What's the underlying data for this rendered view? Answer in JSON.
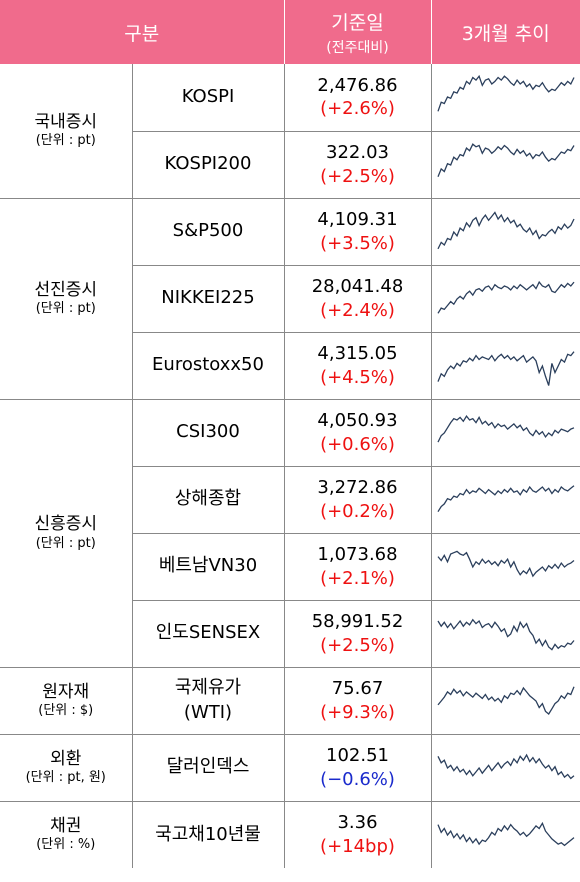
{
  "header": {
    "category": "구분",
    "base_date": "기준일",
    "base_date_sub": "(전주대비)",
    "trend": "3개월 추이"
  },
  "groups": [
    {
      "label": "국내증시",
      "unit": "(단위 : pt)",
      "rows": 2
    },
    {
      "label": "선진증시",
      "unit": "(단위 : pt)",
      "rows": 3
    },
    {
      "label": "신흥증시",
      "unit": "(단위 : pt)",
      "rows": 4
    },
    {
      "label": "원자재",
      "unit": "(단위 : $)",
      "rows": 1
    },
    {
      "label": "외환",
      "unit": "(단위 : pt, 원)",
      "rows": 1
    },
    {
      "label": "채권",
      "unit": "(단위 : %)",
      "rows": 1
    }
  ],
  "rows": [
    {
      "name": "KOSPI",
      "value": "2,476.86",
      "change": "(+2.6%)",
      "direction": "up"
    },
    {
      "name": "KOSPI200",
      "value": "322.03",
      "change": "(+2.5%)",
      "direction": "up"
    },
    {
      "name": "S&P500",
      "value": "4,109.31",
      "change": "(+3.5%)",
      "direction": "up"
    },
    {
      "name": "NIKKEI225",
      "value": "28,041.48",
      "change": "(+2.4%)",
      "direction": "up"
    },
    {
      "name": "Eurostoxx50",
      "value": "4,315.05",
      "change": "(+4.5%)",
      "direction": "up"
    },
    {
      "name": "CSI300",
      "value": "4,050.93",
      "change": "(+0.6%)",
      "direction": "up"
    },
    {
      "name": "상해종합",
      "value": "3,272.86",
      "change": "(+0.2%)",
      "direction": "up"
    },
    {
      "name": "베트남VN30",
      "value": "1,073.68",
      "change": "(+2.1%)",
      "direction": "up"
    },
    {
      "name": "인도SENSEX",
      "value": "58,991.52",
      "change": "(+2.5%)",
      "direction": "up"
    },
    {
      "name": "국제유가\n(WTI)",
      "value": "75.67",
      "change": "(+9.3%)",
      "direction": "up"
    },
    {
      "name": "달러인덱스",
      "value": "102.51",
      "change": "(−0.6%)",
      "direction": "down"
    },
    {
      "name": "국고채10년물",
      "value": "3.36",
      "change": "(+14bp)",
      "direction": "up"
    }
  ],
  "colors": {
    "header_bg": "#f06b8c",
    "up": "#ee1111",
    "down": "#1a2acc",
    "spark_line": "#2b3f5c"
  },
  "sparklines": [
    [
      18,
      32,
      30,
      40,
      38,
      48,
      46,
      55,
      52,
      64,
      60,
      70,
      66,
      72,
      58,
      66,
      68,
      60,
      64,
      70,
      66,
      72,
      68,
      62,
      58,
      66,
      60,
      64,
      56,
      60,
      52,
      58,
      56,
      62,
      54,
      48,
      52,
      50,
      56,
      62,
      58,
      64,
      60,
      70
    ],
    [
      22,
      34,
      30,
      42,
      40,
      52,
      48,
      56,
      54,
      66,
      62,
      72,
      68,
      70,
      58,
      66,
      64,
      58,
      62,
      68,
      64,
      70,
      66,
      60,
      56,
      64,
      58,
      62,
      54,
      58,
      50,
      56,
      54,
      60,
      52,
      46,
      50,
      48,
      54,
      60,
      58,
      64,
      62,
      70
    ],
    [
      14,
      24,
      20,
      30,
      28,
      40,
      34,
      46,
      42,
      54,
      48,
      58,
      62,
      50,
      60,
      66,
      58,
      64,
      70,
      60,
      66,
      56,
      62,
      54,
      58,
      48,
      52,
      44,
      40,
      46,
      36,
      42,
      30,
      36,
      34,
      40,
      44,
      38,
      48,
      44,
      52,
      46,
      50,
      60
    ],
    [
      18,
      26,
      24,
      30,
      36,
      32,
      40,
      44,
      40,
      48,
      52,
      46,
      54,
      56,
      52,
      58,
      60,
      54,
      62,
      58,
      56,
      60,
      58,
      54,
      60,
      56,
      62,
      58,
      54,
      58,
      62,
      56,
      66,
      60,
      58,
      62,
      52,
      50,
      56,
      62,
      58,
      64,
      60,
      66
    ],
    [
      16,
      28,
      24,
      34,
      40,
      36,
      44,
      40,
      48,
      46,
      52,
      48,
      56,
      50,
      54,
      52,
      50,
      56,
      48,
      54,
      58,
      52,
      56,
      50,
      54,
      48,
      52,
      56,
      46,
      50,
      54,
      48,
      30,
      40,
      24,
      10,
      44,
      30,
      40,
      50,
      46,
      58,
      56,
      62
    ],
    [
      26,
      36,
      40,
      48,
      56,
      62,
      60,
      64,
      58,
      66,
      60,
      62,
      56,
      64,
      54,
      58,
      52,
      56,
      48,
      54,
      50,
      52,
      46,
      50,
      54,
      48,
      52,
      44,
      48,
      40,
      36,
      44,
      38,
      42,
      34,
      40,
      36,
      44,
      40,
      46,
      44,
      42,
      46,
      48
    ],
    [
      22,
      30,
      34,
      42,
      40,
      46,
      44,
      50,
      48,
      56,
      50,
      54,
      52,
      58,
      54,
      50,
      56,
      52,
      48,
      54,
      50,
      56,
      52,
      58,
      52,
      54,
      48,
      56,
      52,
      60,
      54,
      52,
      56,
      60,
      54,
      58,
      50,
      56,
      52,
      60,
      56,
      54,
      58,
      62
    ],
    [
      56,
      50,
      58,
      48,
      60,
      62,
      64,
      60,
      58,
      62,
      52,
      40,
      48,
      44,
      52,
      46,
      50,
      44,
      48,
      42,
      50,
      46,
      52,
      40,
      48,
      36,
      28,
      34,
      30,
      38,
      26,
      32,
      36,
      40,
      34,
      42,
      38,
      44,
      38,
      46,
      40,
      44,
      46,
      50
    ],
    [
      60,
      52,
      58,
      50,
      56,
      48,
      54,
      60,
      52,
      58,
      54,
      62,
      56,
      60,
      50,
      54,
      56,
      50,
      58,
      52,
      44,
      48,
      36,
      40,
      52,
      44,
      58,
      50,
      56,
      44,
      38,
      26,
      32,
      22,
      30,
      20,
      16,
      24,
      18,
      22,
      20,
      26,
      24,
      30
    ],
    [
      34,
      40,
      46,
      54,
      50,
      58,
      52,
      56,
      48,
      54,
      50,
      46,
      52,
      48,
      44,
      50,
      42,
      46,
      40,
      44,
      38,
      48,
      44,
      52,
      50,
      56,
      50,
      60,
      54,
      48,
      44,
      40,
      30,
      36,
      24,
      20,
      28,
      36,
      40,
      48,
      44,
      52,
      50,
      62
    ],
    [
      58,
      48,
      52,
      40,
      44,
      36,
      42,
      34,
      38,
      30,
      36,
      28,
      34,
      40,
      32,
      38,
      44,
      36,
      42,
      48,
      40,
      46,
      50,
      44,
      54,
      48,
      58,
      52,
      60,
      50,
      56,
      48,
      54,
      46,
      40,
      44,
      36,
      42,
      30,
      34,
      26,
      30,
      24,
      28
    ],
    [
      56,
      44,
      50,
      40,
      46,
      36,
      42,
      34,
      40,
      30,
      36,
      28,
      34,
      26,
      32,
      30,
      36,
      44,
      40,
      50,
      46,
      54,
      48,
      56,
      50,
      46,
      40,
      44,
      38,
      42,
      48,
      54,
      50,
      58,
      46,
      40,
      34,
      30,
      26,
      28,
      24,
      28,
      32,
      36
    ]
  ]
}
